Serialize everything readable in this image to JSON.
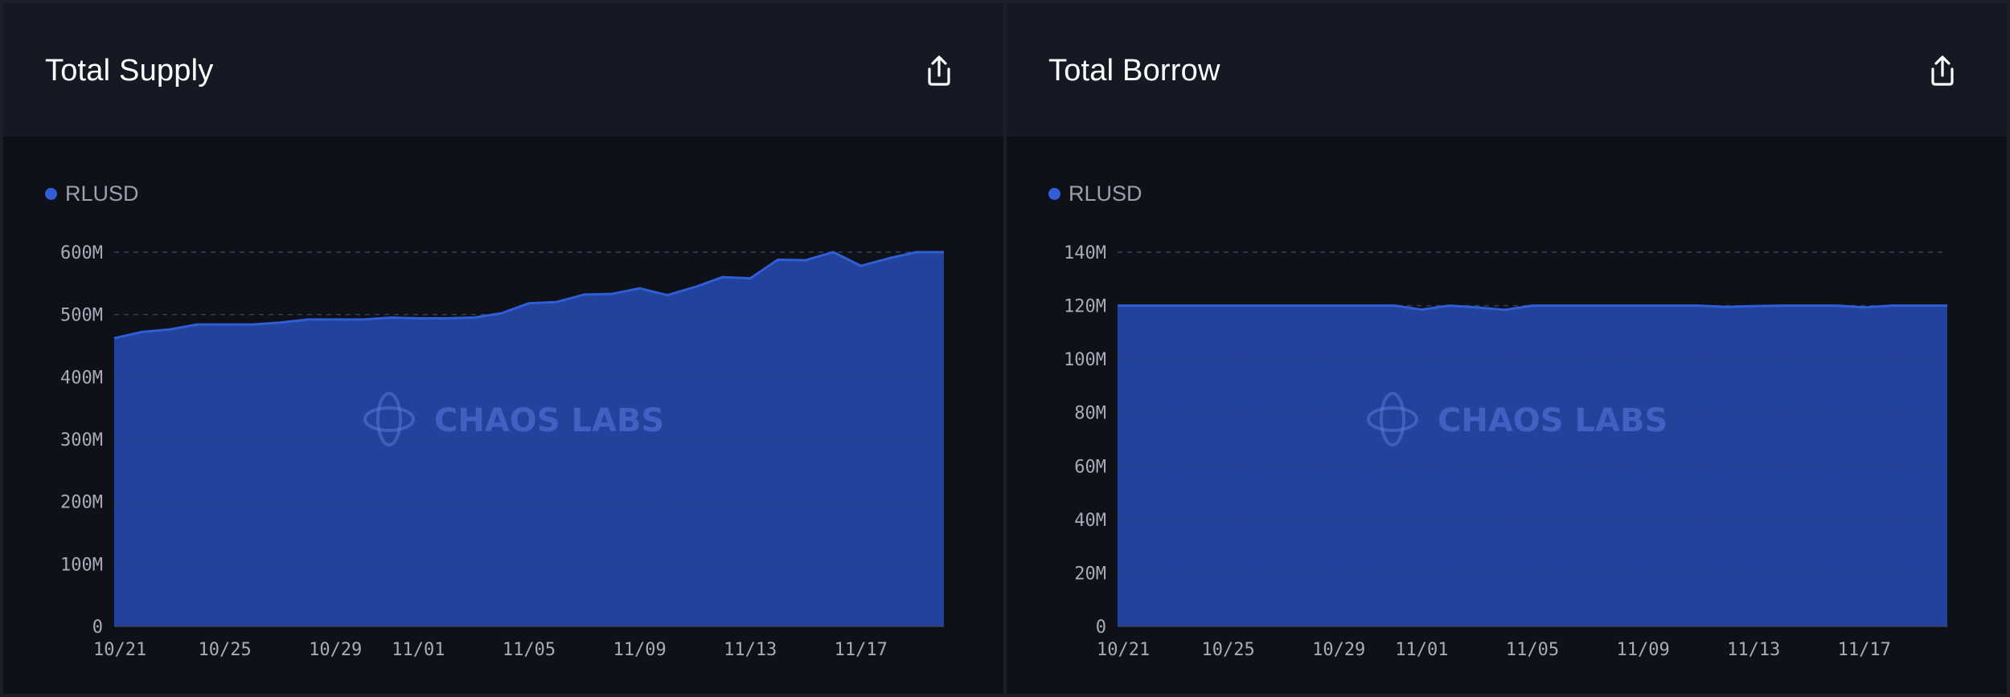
{
  "colors": {
    "series": "#2f5ed6",
    "area": "#2446a3",
    "grid": "#2d3a66",
    "grid_dark": "#3a3f4c"
  },
  "watermark": {
    "text": "CHAOS LABS",
    "icon": "chaos-labs-logo-icon"
  },
  "export_icon": "share-export-icon",
  "chart_data": [
    {
      "type": "area",
      "title": "Total Supply",
      "xlabel": "",
      "ylabel": "",
      "legend": "top-left",
      "grid": true,
      "x_ticks": [
        "10/21",
        "10/25",
        "10/29",
        "11/01",
        "11/05",
        "11/09",
        "11/13",
        "11/17"
      ],
      "y_ticks": [
        "0",
        "100M",
        "200M",
        "300M",
        "400M",
        "500M",
        "600M"
      ],
      "ylim": [
        0,
        600000000
      ],
      "x": [
        "10/21",
        "10/22",
        "10/23",
        "10/24",
        "10/25",
        "10/26",
        "10/27",
        "10/28",
        "10/29",
        "10/30",
        "10/31",
        "11/01",
        "11/02",
        "11/03",
        "11/04",
        "11/05",
        "11/06",
        "11/07",
        "11/08",
        "11/09",
        "11/10",
        "11/11",
        "11/12",
        "11/13",
        "11/14",
        "11/15",
        "11/16",
        "11/17",
        "11/18",
        "11/19",
        "11/20"
      ],
      "series": [
        {
          "name": "RLUSD",
          "values": [
            462000000,
            472000000,
            476000000,
            484000000,
            484000000,
            484000000,
            487000000,
            492000000,
            492000000,
            492000000,
            495000000,
            494000000,
            494000000,
            495000000,
            502000000,
            518000000,
            520000000,
            532000000,
            533000000,
            542000000,
            531000000,
            544000000,
            560000000,
            558000000,
            588000000,
            587000000,
            600000000,
            578000000,
            590000000,
            600000000,
            600000000
          ]
        }
      ]
    },
    {
      "type": "area",
      "title": "Total Borrow",
      "xlabel": "",
      "ylabel": "",
      "legend": "top-left",
      "grid": true,
      "x_ticks": [
        "10/21",
        "10/25",
        "10/29",
        "11/01",
        "11/05",
        "11/09",
        "11/13",
        "11/17"
      ],
      "y_ticks": [
        "0",
        "20M",
        "40M",
        "60M",
        "80M",
        "100M",
        "120M",
        "140M"
      ],
      "ylim": [
        0,
        140000000
      ],
      "x": [
        "10/21",
        "10/22",
        "10/23",
        "10/24",
        "10/25",
        "10/26",
        "10/27",
        "10/28",
        "10/29",
        "10/30",
        "10/31",
        "11/01",
        "11/02",
        "11/03",
        "11/04",
        "11/05",
        "11/06",
        "11/07",
        "11/08",
        "11/09",
        "11/10",
        "11/11",
        "11/12",
        "11/13",
        "11/14",
        "11/15",
        "11/16",
        "11/17",
        "11/18",
        "11/19",
        "11/20"
      ],
      "series": [
        {
          "name": "RLUSD",
          "values": [
            120000000,
            120000000,
            120000000,
            120000000,
            120000000,
            120000000,
            120000000,
            120000000,
            120000000,
            120000000,
            120000000,
            118500000,
            120000000,
            119300000,
            118400000,
            120000000,
            120000000,
            120000000,
            120000000,
            120000000,
            120000000,
            120000000,
            119500000,
            119800000,
            120000000,
            120000000,
            120000000,
            119300000,
            120000000,
            120000000,
            120000000
          ]
        }
      ]
    }
  ]
}
